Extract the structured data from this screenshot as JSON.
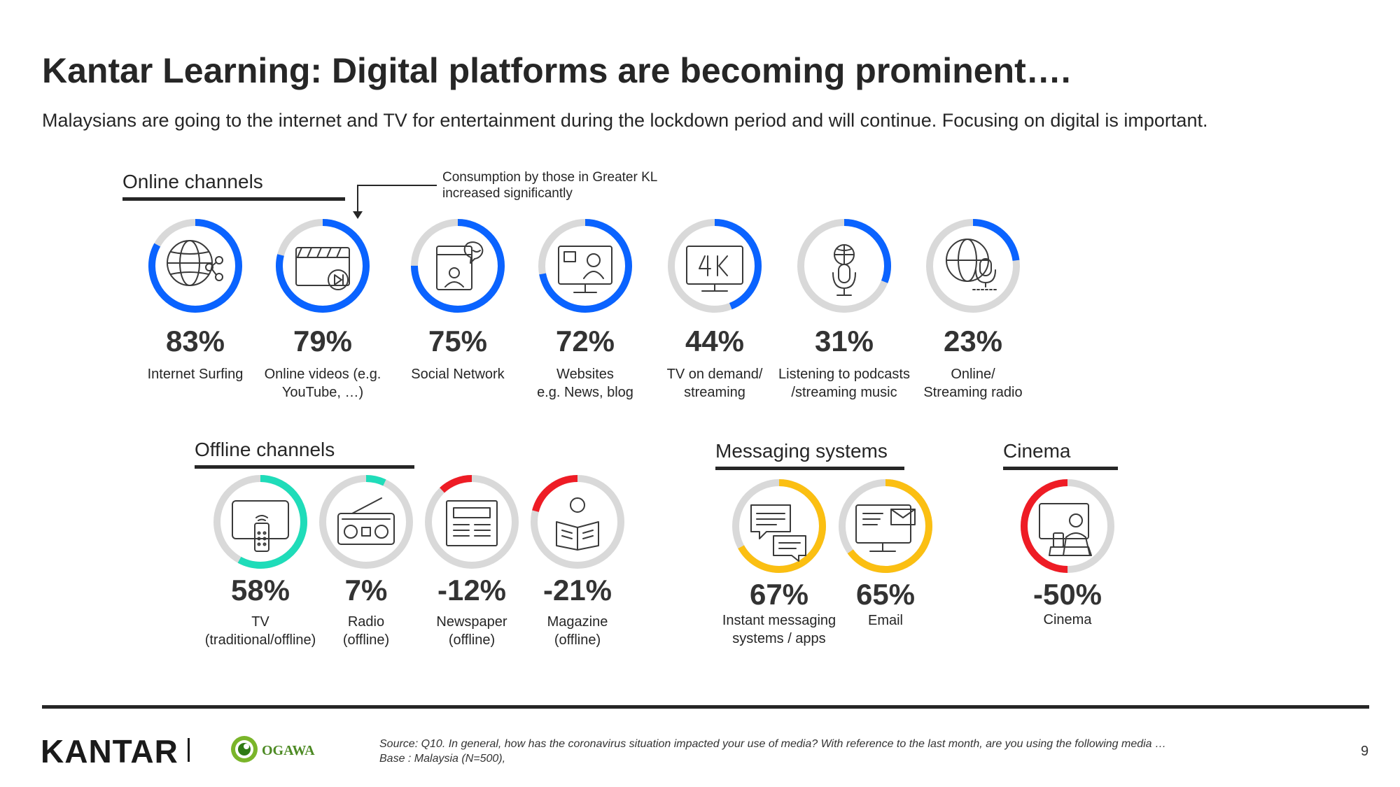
{
  "title": "Kantar Learning: Digital platforms are becoming prominent….",
  "subtitle": "Malaysians are going to the internet and TV for entertainment during the lockdown period and will continue. Focusing on digital is important.",
  "callout": {
    "line1": "Consumption by those in Greater KL",
    "line2": "increased significantly"
  },
  "colors": {
    "online": "#0a63ff",
    "offline_positive": "#1fdcb9",
    "negative": "#ee1c25",
    "messaging": "#fbbf12",
    "track": "#d9d9d9",
    "icon_stroke": "#3a3a3a"
  },
  "chart_data": {
    "type": "donut",
    "value_unit": "%",
    "groups": [
      {
        "title": "Online channels",
        "items": [
          {
            "value": 83,
            "display": "83%",
            "label_lines": [
              "Internet Surfing"
            ],
            "icon": "globe-share-icon"
          },
          {
            "value": 79,
            "display": "79%",
            "label_lines": [
              "Online videos (e.g.",
              "YouTube, …)"
            ],
            "icon": "video-clapper-icon"
          },
          {
            "value": 75,
            "display": "75%",
            "label_lines": [
              "Social Network"
            ],
            "icon": "social-network-icon"
          },
          {
            "value": 72,
            "display": "72%",
            "label_lines": [
              "Websites",
              "e.g. News, blog"
            ],
            "icon": "website-monitor-icon"
          },
          {
            "value": 44,
            "display": "44%",
            "label_lines": [
              "TV on demand/",
              "streaming"
            ],
            "icon": "tv-4k-icon"
          },
          {
            "value": 31,
            "display": "31%",
            "label_lines": [
              "Listening to podcasts",
              "/streaming music"
            ],
            "icon": "podcast-microphone-icon"
          },
          {
            "value": 23,
            "display": "23%",
            "label_lines": [
              "Online/",
              "Streaming radio"
            ],
            "icon": "globe-microphone-icon"
          }
        ]
      },
      {
        "title": "Offline channels",
        "items": [
          {
            "value": 58,
            "display": "58%",
            "label_lines": [
              "TV",
              "(traditional/offline)"
            ],
            "icon": "tv-remote-icon"
          },
          {
            "value": 7,
            "display": "7%",
            "label_lines": [
              "Radio",
              "(offline)"
            ],
            "icon": "radio-icon"
          },
          {
            "value": -12,
            "display": "-12%",
            "label_lines": [
              "Newspaper",
              "(offline)"
            ],
            "icon": "newspaper-icon"
          },
          {
            "value": -21,
            "display": "-21%",
            "label_lines": [
              "Magazine",
              "(offline)"
            ],
            "icon": "magazine-reader-icon"
          }
        ]
      },
      {
        "title": "Messaging systems",
        "items": [
          {
            "value": 67,
            "display": "67%",
            "label_lines": [
              "Instant messaging",
              "systems / apps"
            ],
            "icon": "chat-bubbles-icon"
          },
          {
            "value": 65,
            "display": "65%",
            "label_lines": [
              "Email"
            ],
            "icon": "email-monitor-icon"
          }
        ]
      },
      {
        "title": "Cinema",
        "items": [
          {
            "value": -50,
            "display": "-50%",
            "label_lines": [
              "Cinema"
            ],
            "icon": "cinema-viewer-icon"
          }
        ]
      }
    ]
  },
  "footer": {
    "brand": "KANTAR",
    "partner": "OGAWA",
    "source_line1": "Source: Q10. In general, how has the coronavirus situation impacted your use of media? With reference to the last month, are you using the following media …",
    "source_line2": "Base : Malaysia (N=500),",
    "page_number": "9"
  }
}
